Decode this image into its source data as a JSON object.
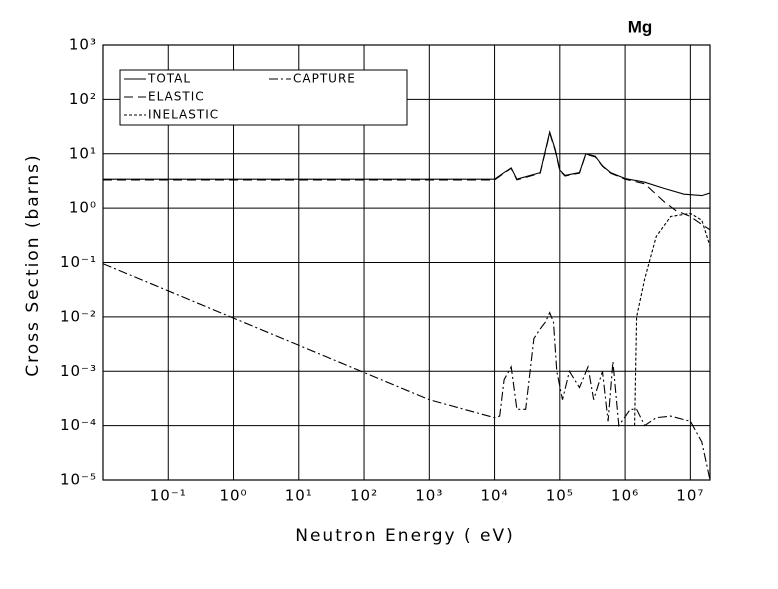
{
  "chart_data": {
    "type": "line",
    "title": "Mg",
    "x_label": "Neutron Energy ( eV)",
    "y_label": "Cross Section (barns)",
    "log_x": true,
    "log_y": true,
    "grid": true,
    "legend": "upper left",
    "xlim": [
      0.01,
      20000000
    ],
    "ylim": [
      1e-05,
      1000
    ],
    "xticks": [
      {
        "value": 0.1,
        "label": "10⁻¹"
      },
      {
        "value": 1,
        "label": "10⁰"
      },
      {
        "value": 10,
        "label": "10¹"
      },
      {
        "value": 100,
        "label": "10²"
      },
      {
        "value": 1000,
        "label": "10³"
      },
      {
        "value": 10000,
        "label": "10⁴"
      },
      {
        "value": 100000,
        "label": "10⁵"
      },
      {
        "value": 1000000,
        "label": "10⁶"
      },
      {
        "value": 10000000,
        "label": "10⁷"
      }
    ],
    "yticks": [
      {
        "value": 1e-05,
        "label": "10⁻⁵"
      },
      {
        "value": 0.0001,
        "label": "10⁻⁴"
      },
      {
        "value": 0.001,
        "label": "10⁻³"
      },
      {
        "value": 0.01,
        "label": "10⁻²"
      },
      {
        "value": 0.1,
        "label": "10⁻¹"
      },
      {
        "value": 1,
        "label": "10⁰"
      },
      {
        "value": 10,
        "label": "10¹"
      },
      {
        "value": 100,
        "label": "10²"
      },
      {
        "value": 1000,
        "label": "10³"
      }
    ],
    "series": [
      {
        "name": "TOTAL",
        "color": "#000000",
        "dash": "none",
        "x": [
          0.01,
          10000,
          14000,
          18000,
          22000,
          50000,
          70000,
          85000,
          100000,
          120000,
          200000,
          250000,
          350000,
          450000,
          600000,
          1000000,
          2000000,
          4000000,
          8000000,
          15000000,
          20000000
        ],
        "values": [
          3.4,
          3.4,
          4.5,
          5.5,
          3.4,
          4.5,
          25,
          12,
          5,
          4,
          4.5,
          10,
          9,
          6,
          4.5,
          3.5,
          3,
          2.3,
          1.8,
          1.7,
          1.9
        ]
      },
      {
        "name": "ELASTIC",
        "color": "#000000",
        "dash": "9,5",
        "x": [
          0.01,
          10000,
          14000,
          18000,
          22000,
          50000,
          70000,
          85000,
          100000,
          120000,
          200000,
          250000,
          350000,
          450000,
          600000,
          1000000,
          2000000,
          4000000,
          6000000,
          10000000,
          15000000,
          20000000
        ],
        "values": [
          3.3,
          3.3,
          4.4,
          5.4,
          3.3,
          4.4,
          24,
          11.5,
          4.9,
          3.9,
          4.4,
          9.8,
          8.8,
          5.9,
          4.4,
          3.4,
          2.8,
          1.3,
          0.9,
          0.7,
          0.5,
          0.4
        ]
      },
      {
        "name": "INELASTIC",
        "color": "#000000",
        "dash": "3,2",
        "x": [
          1400000,
          1500000,
          2000000,
          3000000,
          5000000,
          10000000,
          15000000,
          20000000
        ],
        "values": [
          0.0001,
          0.01,
          0.05,
          0.3,
          0.7,
          0.8,
          0.6,
          0.2
        ]
      },
      {
        "name": "CAPTURE",
        "color": "#000000",
        "dash": "9,3,2,3",
        "x": [
          0.01,
          0.1,
          1,
          10,
          100,
          1000,
          10000,
          12000,
          14000,
          18000,
          22000,
          30000,
          40000,
          50000,
          60000,
          70000,
          80000,
          90000,
          110000,
          140000,
          200000,
          270000,
          330000,
          450000,
          550000,
          650000,
          800000,
          1200000,
          1500000,
          2000000,
          3000000,
          5000000,
          10000000,
          15000000,
          20000000
        ],
        "values": [
          0.095,
          0.03,
          0.0095,
          0.003,
          0.00095,
          0.0003,
          0.00014,
          0.00015,
          0.0007,
          0.0012,
          0.0002,
          0.0002,
          0.004,
          0.006,
          0.008,
          0.012,
          0.008,
          0.001,
          0.0003,
          0.001,
          0.0005,
          0.0012,
          0.0003,
          0.001,
          0.00012,
          0.0015,
          0.0001,
          0.0002,
          0.0002,
          0.0001,
          0.00014,
          0.00015,
          0.00012,
          5e-05,
          1e-05
        ]
      }
    ]
  }
}
